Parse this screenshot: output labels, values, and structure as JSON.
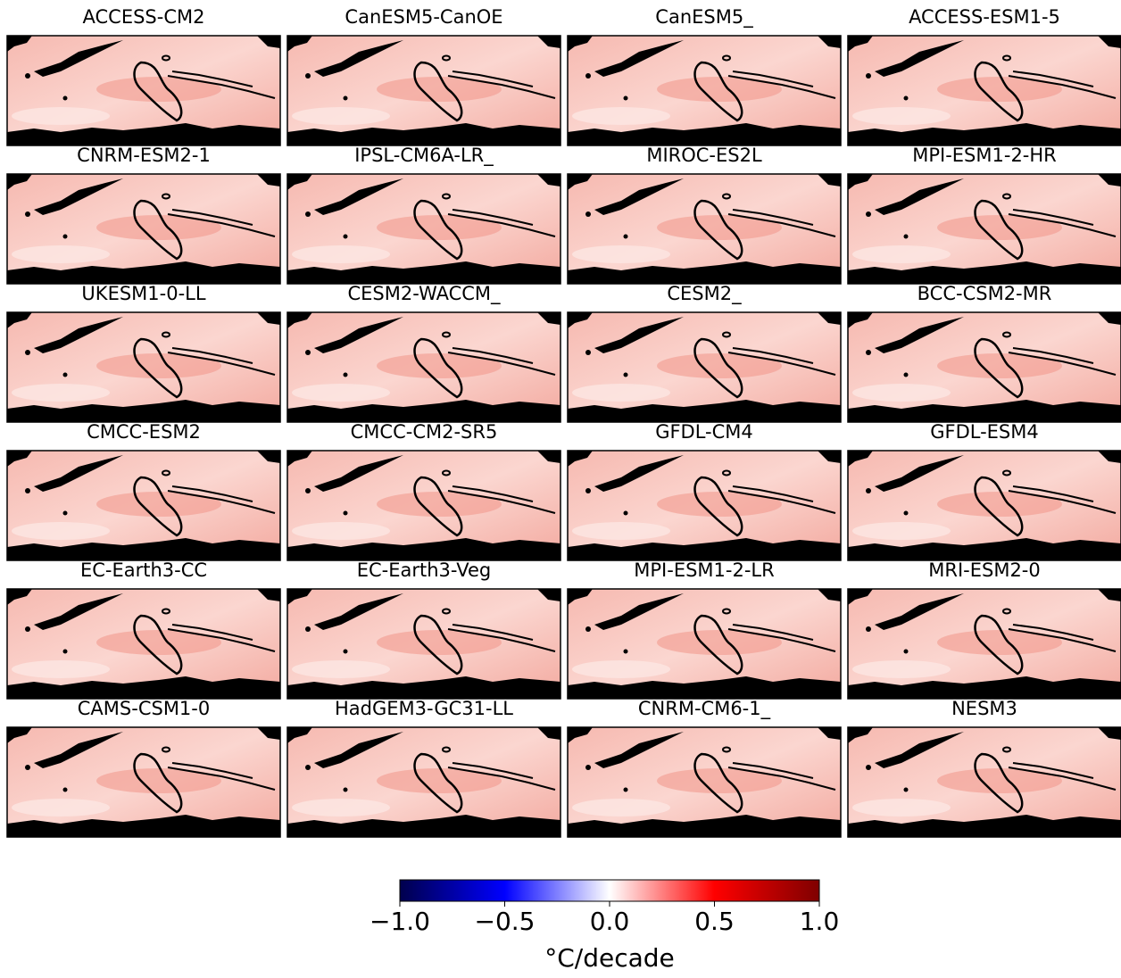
{
  "panels": [
    {
      "title": "ACCESS-CM2"
    },
    {
      "title": "CanESM5-CanOE"
    },
    {
      "title": "CanESM5_"
    },
    {
      "title": "ACCESS-ESM1-5"
    },
    {
      "title": "CNRM-ESM2-1"
    },
    {
      "title": "IPSL-CM6A-LR_"
    },
    {
      "title": "MIROC-ES2L"
    },
    {
      "title": "MPI-ESM1-2-HR"
    },
    {
      "title": "UKESM1-0-LL"
    },
    {
      "title": "CESM2-WACCM_"
    },
    {
      "title": "CESM2_"
    },
    {
      "title": "BCC-CSM2-MR"
    },
    {
      "title": "CMCC-ESM2"
    },
    {
      "title": "CMCC-CM2-SR5"
    },
    {
      "title": "GFDL-CM4"
    },
    {
      "title": "GFDL-ESM4"
    },
    {
      "title": "EC-Earth3-CC"
    },
    {
      "title": "EC-Earth3-Veg"
    },
    {
      "title": "MPI-ESM1-2-LR"
    },
    {
      "title": "MRI-ESM2-0"
    },
    {
      "title": "CAMS-CSM1-0"
    },
    {
      "title": "HadGEM3-GC31-LL"
    },
    {
      "title": "CNRM-CM6-1_"
    },
    {
      "title": "NESM3"
    }
  ],
  "colorbar": {
    "label": "°C/decade",
    "lim": [
      -1,
      1
    ],
    "ticks": [
      {
        "value": -1,
        "label": "−1.0"
      },
      {
        "value": -0.5,
        "label": "−0.5"
      },
      {
        "value": 0,
        "label": "0.0"
      },
      {
        "value": 0.5,
        "label": "0.5"
      },
      {
        "value": 1,
        "label": "1.0"
      }
    ],
    "colormap": [
      "#00004c",
      "#0000ff",
      "#ffffff",
      "#ff0000",
      "#7f0000"
    ]
  }
}
